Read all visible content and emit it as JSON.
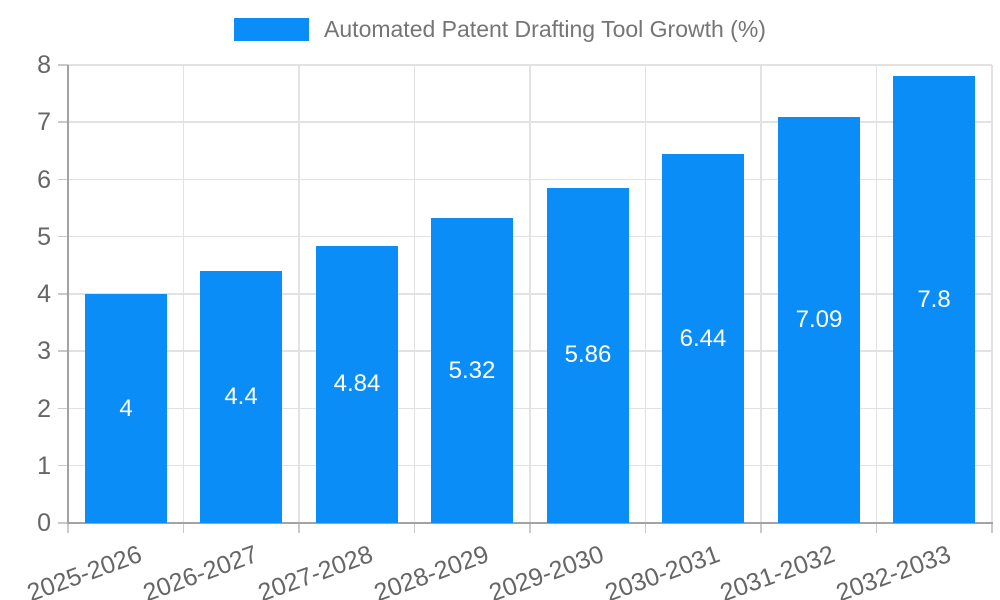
{
  "legend": {
    "label": "Automated Patent Drafting Tool Growth (%)"
  },
  "colors": {
    "bar": "#0b8df8",
    "grid": "#e2e2e2",
    "axis": "#a3a3a3",
    "tick": "#c9c9c9",
    "tick_label": "#666666",
    "legend_text": "#757575",
    "value_label": "#ffffff",
    "background": "#ffffff"
  },
  "chart_data": {
    "type": "bar",
    "title": "Automated Patent Drafting Tool Growth (%)",
    "categories": [
      "2025-2026",
      "2026-2027",
      "2027-2028",
      "2028-2029",
      "2029-2030",
      "2030-2031",
      "2031-2032",
      "2032-2033"
    ],
    "values": [
      4,
      4.4,
      4.84,
      5.32,
      5.86,
      6.44,
      7.09,
      7.8
    ],
    "value_labels": [
      "4",
      "4.4",
      "4.84",
      "5.32",
      "5.86",
      "6.44",
      "7.09",
      "7.8"
    ],
    "xlabel": "",
    "ylabel": "",
    "ylim": [
      0,
      8
    ],
    "yticks": [
      0,
      1,
      2,
      3,
      4,
      5,
      6,
      7,
      8
    ],
    "grid": true,
    "legend_position": "top",
    "x_tick_rotation_deg": -20,
    "value_labels_inside_bars": true
  }
}
